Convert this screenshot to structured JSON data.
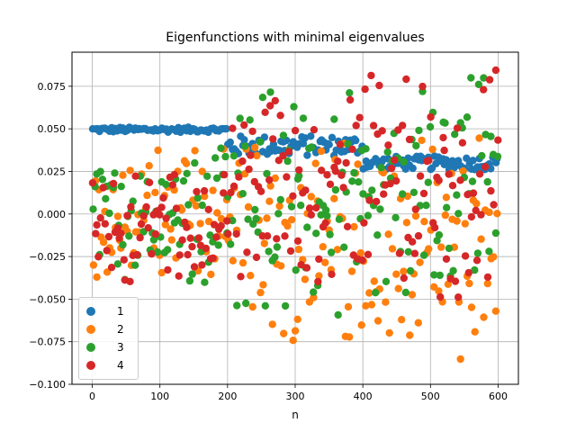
{
  "chart_data": {
    "type": "scatter",
    "title": "Eigenfunctions with minimal eigenvalues",
    "xlabel": "n",
    "ylabel": "",
    "xlim": [
      -30,
      630
    ],
    "ylim": [
      -0.1,
      0.095
    ],
    "xticks": [
      0,
      100,
      200,
      300,
      400,
      500,
      600
    ],
    "xtick_labels": [
      "0",
      "100",
      "200",
      "300",
      "400",
      "500",
      "600"
    ],
    "yticks": [
      -0.1,
      -0.075,
      -0.05,
      -0.025,
      0.0,
      0.025,
      0.05,
      0.075
    ],
    "ytick_labels": [
      "−0.100",
      "−0.075",
      "−0.050",
      "−0.025",
      "0.000",
      "0.025",
      "0.050",
      "0.075"
    ],
    "grid": true,
    "legend_position": "lower-left",
    "series": [
      {
        "name": "1",
        "color": "#1f77b4",
        "x_range": [
          0,
          600
        ],
        "segments": [
          {
            "x": [
              0,
              199
            ],
            "values": [
              0.048,
              0.051
            ]
          },
          {
            "x": [
              200,
              399
            ],
            "values": [
              0.034,
              0.046
            ]
          },
          {
            "x": [
              400,
              600
            ],
            "values": [
              0.026,
              0.034
            ]
          }
        ]
      },
      {
        "name": "2",
        "color": "#ff7f0e",
        "x_range": [
          0,
          600
        ],
        "segments": [
          {
            "x": [
              0,
              199
            ],
            "values": [
              -0.045,
              0.04
            ]
          },
          {
            "x": [
              200,
              399
            ],
            "values": [
              -0.075,
              0.047
            ]
          },
          {
            "x": [
              400,
              600
            ],
            "values": [
              -0.092,
              0.047
            ]
          }
        ]
      },
      {
        "name": "3",
        "color": "#2ca02c",
        "x_range": [
          0,
          600
        ],
        "segments": [
          {
            "x": [
              0,
              199
            ],
            "values": [
              -0.045,
              0.04
            ]
          },
          {
            "x": [
              200,
              399
            ],
            "values": [
              -0.06,
              0.075
            ]
          },
          {
            "x": [
              400,
              600
            ],
            "values": [
              -0.05,
              0.083
            ]
          }
        ]
      },
      {
        "name": "4",
        "color": "#d62728",
        "x_range": [
          0,
          600
        ],
        "segments": [
          {
            "x": [
              0,
              199
            ],
            "values": [
              -0.04,
              0.025
            ]
          },
          {
            "x": [
              200,
              399
            ],
            "values": [
              -0.05,
              0.07
            ]
          },
          {
            "x": [
              400,
              600
            ],
            "values": [
              -0.05,
              0.088
            ]
          }
        ]
      }
    ]
  }
}
